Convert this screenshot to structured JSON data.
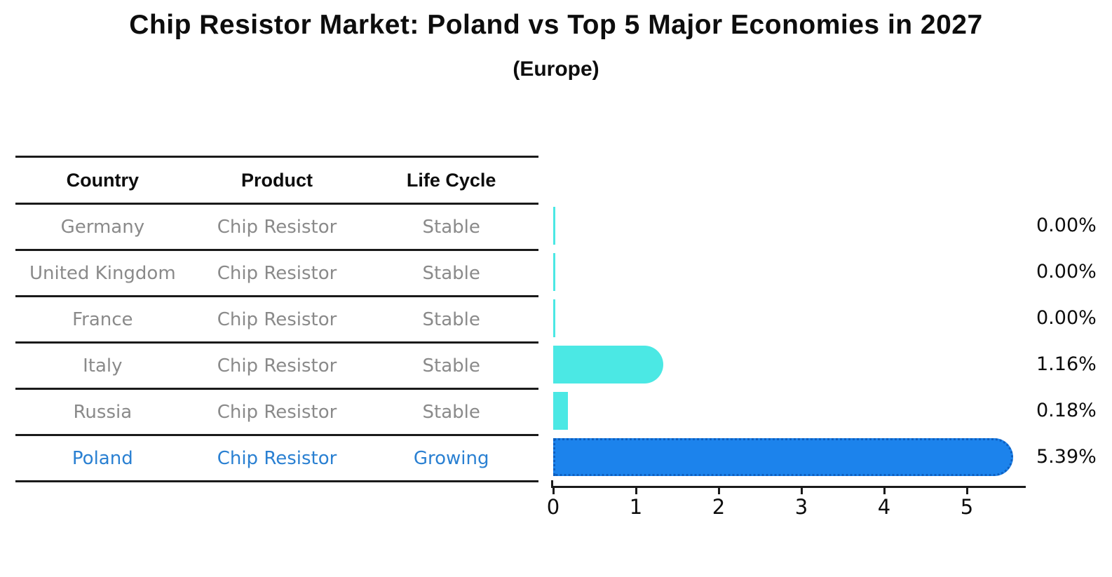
{
  "title": "Chip Resistor Market: Poland vs Top 5 Major Economies in 2027",
  "subtitle": "(Europe)",
  "table": {
    "headers": [
      "Country",
      "Product",
      "Life Cycle"
    ],
    "rows": [
      {
        "country": "Germany",
        "product": "Chip Resistor",
        "life_cycle": "Stable",
        "highlight": false
      },
      {
        "country": "United Kingdom",
        "product": "Chip Resistor",
        "life_cycle": "Stable",
        "highlight": false
      },
      {
        "country": "France",
        "product": "Chip Resistor",
        "life_cycle": "Stable",
        "highlight": false
      },
      {
        "country": "Italy",
        "product": "Chip Resistor",
        "life_cycle": "Stable",
        "highlight": false
      },
      {
        "country": "Russia",
        "product": "Chip Resistor",
        "life_cycle": "Stable",
        "highlight": false
      },
      {
        "country": "Poland",
        "product": "Chip Resistor",
        "life_cycle": "Growing",
        "highlight": true
      }
    ]
  },
  "chart_data": {
    "type": "bar",
    "orientation": "horizontal",
    "title": "Chip Resistor Market: Poland vs Top 5 Major Economies in 2027",
    "subtitle": "(Europe)",
    "categories": [
      "Germany",
      "United Kingdom",
      "France",
      "Italy",
      "Russia",
      "Poland"
    ],
    "values": [
      0.0,
      0.0,
      0.0,
      1.16,
      0.18,
      5.39
    ],
    "value_labels": [
      "0.00%",
      "0.00%",
      "0.00%",
      "1.16%",
      "0.18%",
      "5.39%"
    ],
    "highlight_index": 5,
    "xticks": [
      "0",
      "1",
      "2",
      "3",
      "4",
      "5"
    ],
    "xlim": [
      0,
      5.7
    ],
    "grid": false,
    "legend": "none"
  },
  "colors": {
    "bar_default": "#4be8e4",
    "bar_highlight": "#1c83ec",
    "highlight_text": "#2a80d2",
    "row_text": "#8a8a8a",
    "heading_text": "#0d0d0d",
    "line": "#1a1a1a"
  }
}
